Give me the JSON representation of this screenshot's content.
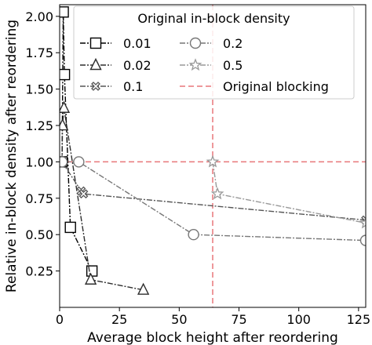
{
  "chart_data": {
    "type": "line",
    "xlabel": "Average block height after reordering",
    "ylabel": "Relative in-block density after reordering",
    "xlim": [
      0,
      128
    ],
    "ylim": [
      0,
      2.08
    ],
    "x_ticks": [
      0,
      25,
      50,
      75,
      100,
      125
    ],
    "y_ticks": [
      0.25,
      0.5,
      0.75,
      1.0,
      1.25,
      1.5,
      1.75,
      2.0
    ],
    "x_tick_labels": [
      "0",
      "25",
      "50",
      "75",
      "100",
      "125"
    ],
    "y_tick_labels": [
      "0.25",
      "0.50",
      "0.75",
      "1.00",
      "1.25",
      "1.50",
      "1.75",
      "2.00"
    ],
    "grid": false,
    "legend_title": "Original in-block density",
    "legend_position": "top-right",
    "series": [
      {
        "name": "0.01",
        "marker": "square",
        "color": "#000000",
        "dash": "7,2,2,2",
        "points": [
          [
            1,
            1.0
          ],
          [
            1.5,
            2.03
          ],
          [
            2,
            1.6
          ],
          [
            4.5,
            0.55
          ],
          [
            13.5,
            0.25
          ]
        ]
      },
      {
        "name": "0.02",
        "marker": "triangle",
        "color": "#2e2e2e",
        "dash": "7,2,2,2",
        "points": [
          [
            1,
            1.0
          ],
          [
            1.2,
            1.25
          ],
          [
            1.8,
            1.37
          ],
          [
            13,
            0.19
          ],
          [
            35,
            0.12
          ]
        ]
      },
      {
        "name": "0.1",
        "marker": "x-circle",
        "color": "#555555",
        "dash": "7,2,2,2",
        "points": [
          [
            1,
            1.0
          ],
          [
            9,
            0.8
          ],
          [
            10,
            0.78
          ],
          [
            128,
            0.6
          ]
        ]
      },
      {
        "name": "0.2",
        "marker": "circle",
        "color": "#777777",
        "dash": "7,2,2,2",
        "points": [
          [
            1,
            1.0
          ],
          [
            8,
            1.0
          ],
          [
            56,
            0.5
          ],
          [
            128,
            0.46
          ]
        ]
      },
      {
        "name": "0.5",
        "marker": "star",
        "color": "#999999",
        "dash": "7,2,2,2",
        "points": [
          [
            64,
            1.0
          ],
          [
            66,
            0.78
          ],
          [
            128,
            0.58
          ]
        ]
      }
    ],
    "reference_lines": {
      "name": "Original blocking",
      "color": "#e8777a",
      "x": 64,
      "y": 1.0
    }
  }
}
